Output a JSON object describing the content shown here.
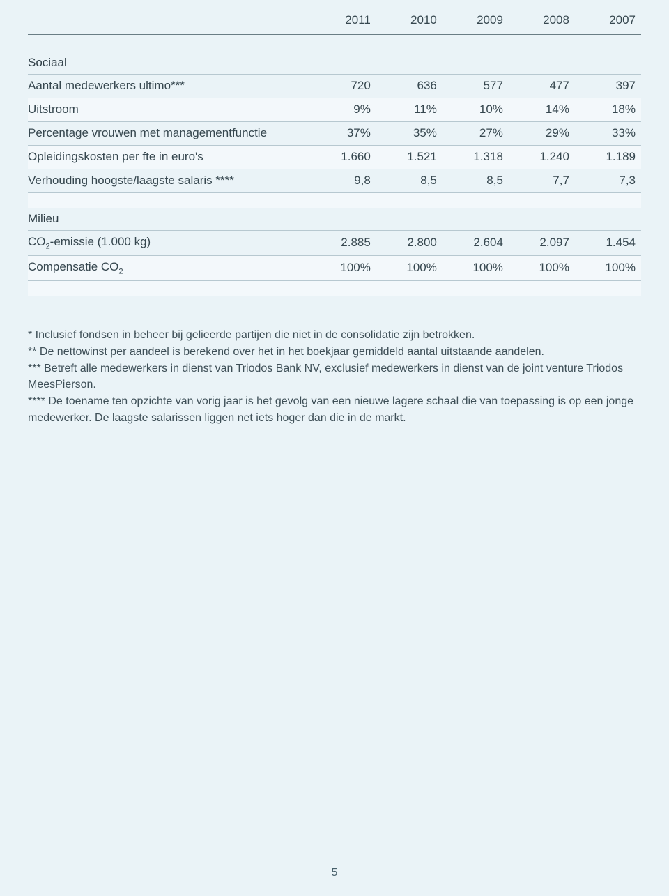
{
  "table": {
    "year_headers": [
      "2011",
      "2010",
      "2009",
      "2008",
      "2007"
    ],
    "section_sociaal": "Sociaal",
    "section_milieu": "Milieu",
    "rows_sociaal": [
      {
        "label": "Aantal medewerkers ultimo***",
        "vals": [
          "720",
          "636",
          "577",
          "477",
          "397"
        ]
      },
      {
        "label": "Uitstroom",
        "vals": [
          "9%",
          "11%",
          "10%",
          "14%",
          "18%"
        ]
      },
      {
        "label": "Percentage vrouwen met managementfunctie",
        "vals": [
          "37%",
          "35%",
          "27%",
          "29%",
          "33%"
        ]
      },
      {
        "label": "Opleidingskosten per fte in euro's",
        "vals": [
          "1.660",
          "1.521",
          "1.318",
          "1.240",
          "1.189"
        ]
      },
      {
        "label": "Verhouding hoogste/laagste salaris ****",
        "vals": [
          "9,8",
          "8,5",
          "8,5",
          "7,7",
          "7,3"
        ]
      }
    ],
    "row_co2": {
      "label_pre": "CO",
      "label_sub": "2",
      "label_post": "-emissie (1.000 kg)",
      "vals": [
        "2.885",
        "2.800",
        "2.604",
        "2.097",
        "1.454"
      ]
    },
    "row_comp": {
      "label_pre": "Compensatie CO",
      "label_sub": "2",
      "vals": [
        "100%",
        "100%",
        "100%",
        "100%",
        "100%"
      ]
    }
  },
  "footnotes": [
    "* Inclusief fondsen in beheer bij gelieerde partijen die niet in de consolidatie zijn betrokken.",
    "** De nettowinst per aandeel is berekend over het in het boekjaar gemiddeld aantal uitstaande aandelen.",
    "*** Betreft alle medewerkers in dienst van Triodos Bank NV, exclusief medewerkers in dienst van de joint venture Triodos MeesPierson.",
    "**** De toename ten opzichte van vorig jaar is het gevolg van een nieuwe lagere schaal die van toepassing is op een jonge medewerker. De laagste salarissen liggen net iets hoger dan die in de markt."
  ],
  "page_number": "5"
}
